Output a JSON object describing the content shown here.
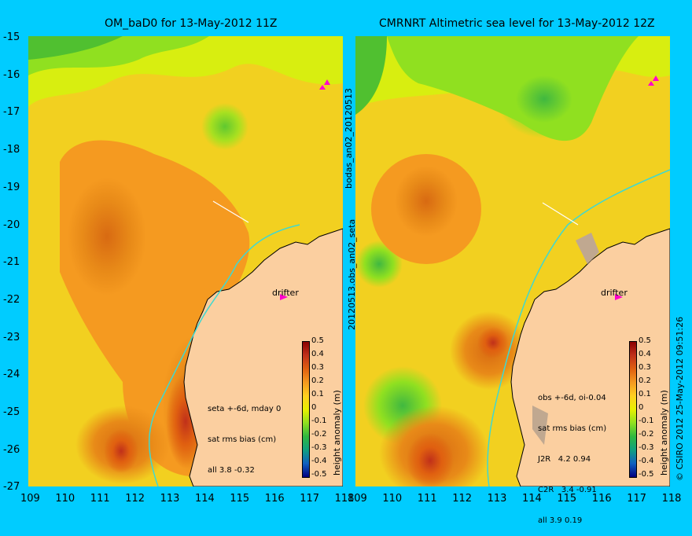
{
  "left_panel": {
    "title": "OM_baD0 for 13-May-2012 11Z",
    "side_label": "bodas_an02_20120513",
    "drifter": "drifter",
    "info": [
      "seta +-6d, mday 0",
      "sat rms bias (cm)",
      "all 3.8 -0.32"
    ]
  },
  "right_panel": {
    "title": "CMRNRT Altimetric sea level  for 13-May-2012 12Z",
    "side_label": "20120513.obs_an02_seta",
    "drifter": "drifter",
    "info": [
      "obs +-6d, oi-0.04",
      "sat rms bias (cm)",
      "J2R   4.2 0.94",
      "C2R   3.4 -0.91",
      "all 3.9 0.19"
    ]
  },
  "colorbar": {
    "label": "height anomaly (m)",
    "ticks": [
      "0.5",
      "0.4",
      "0.3",
      "0.2",
      "0.1",
      "0",
      "-0.1",
      "-0.2",
      "-0.3",
      "-0.4",
      "-0.5"
    ],
    "colors": [
      "#8b0000",
      "#c0301a",
      "#e06010",
      "#f59a20",
      "#ffd020",
      "#e8f000",
      "#90e020",
      "#30b840",
      "#10a080",
      "#1060c0",
      "#000080"
    ]
  },
  "copyright": "© CSIRO 2012   25-May-2012 09:51:26",
  "axes": {
    "lat_ticks": [
      "-15",
      "-16",
      "-17",
      "-18",
      "-19",
      "-20",
      "-21",
      "-22",
      "-23",
      "-24",
      "-25",
      "-26",
      "-27"
    ],
    "lon_ticks": [
      "109",
      "110",
      "111",
      "112",
      "113",
      "114",
      "115",
      "116",
      "117",
      "118"
    ]
  },
  "colors": {
    "land": "#fbcfa0",
    "background": "#00ccff",
    "coast_track": "#40d8d0"
  }
}
